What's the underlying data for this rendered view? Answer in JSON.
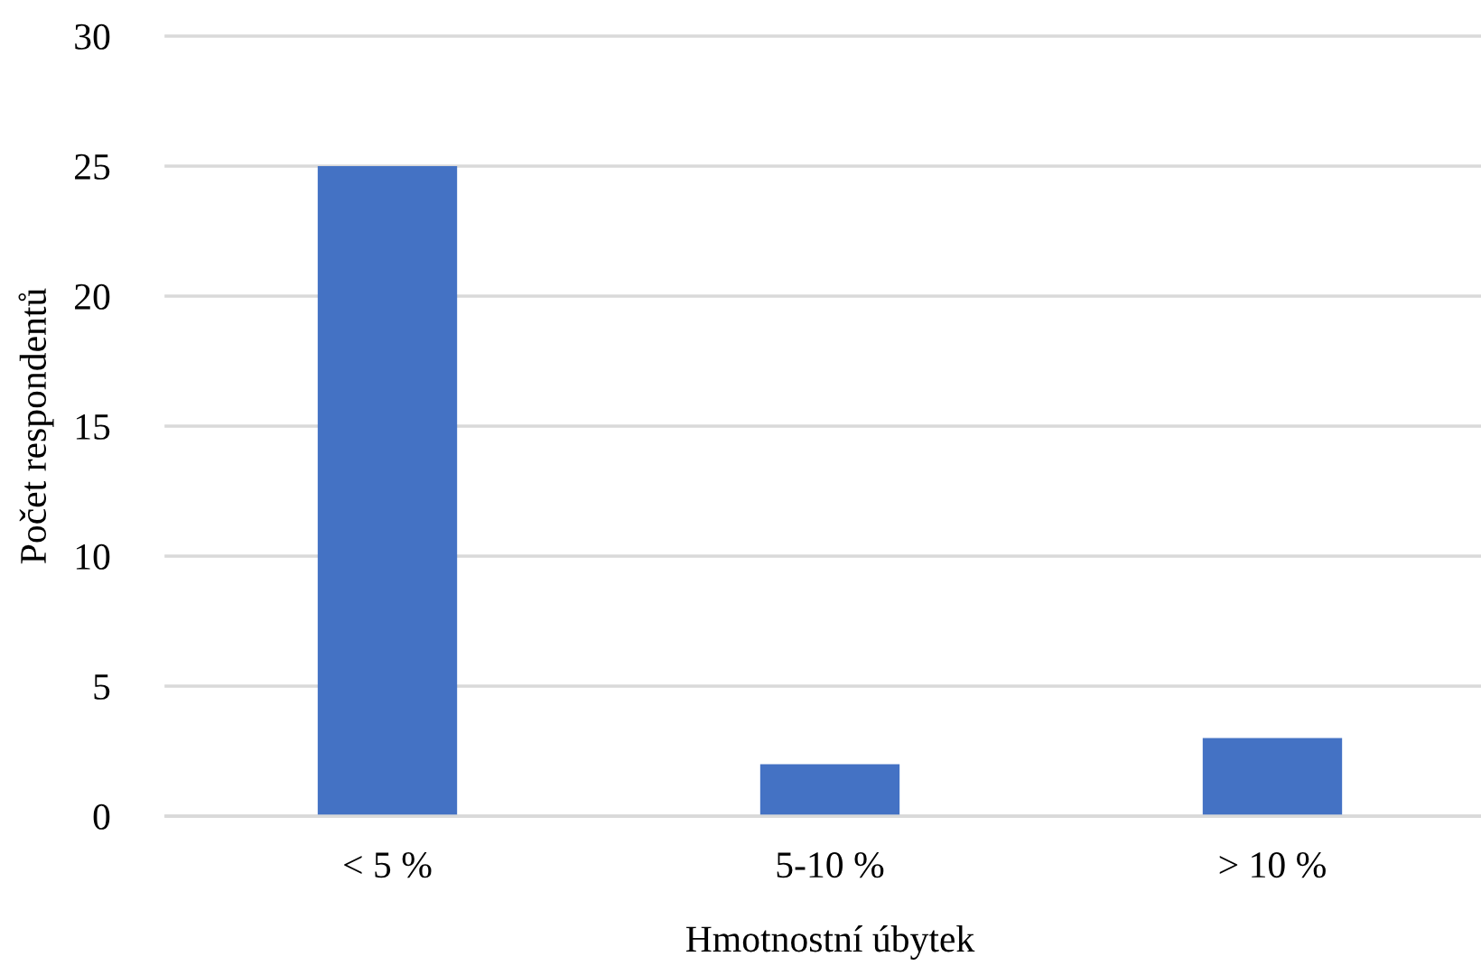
{
  "chart_data": {
    "type": "bar",
    "xlabel": "Hmotnostní úbytek",
    "ylabel": "Počet respondentů",
    "categories": [
      "< 5 %",
      "5-10 %",
      "> 10 %"
    ],
    "values": [
      25,
      2,
      3
    ],
    "color": "#4472c4",
    "ylim": [
      0,
      30
    ],
    "yticks": [
      0,
      5,
      10,
      15,
      20,
      25,
      30
    ],
    "grid": "y"
  }
}
